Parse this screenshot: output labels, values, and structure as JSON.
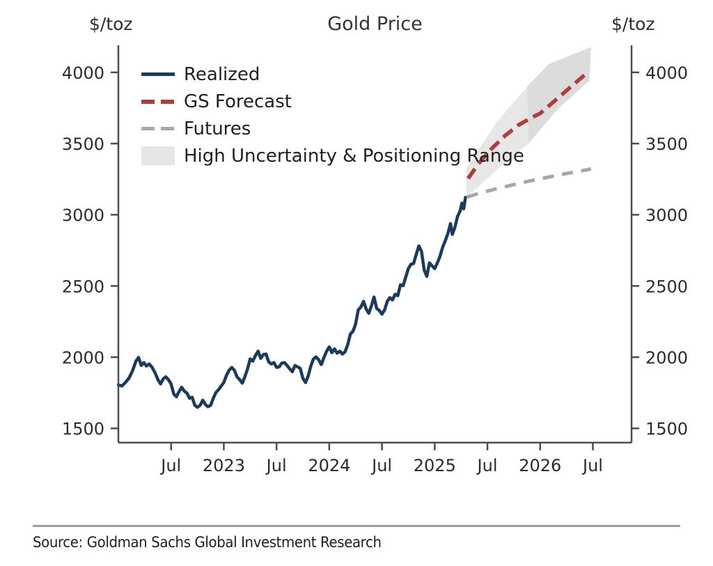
{
  "header": {
    "title": "Gold Price",
    "left_axis_unit": "$/toz",
    "right_axis_unit": "$/toz"
  },
  "legend": [
    {
      "label": "Realized",
      "style": "solid-line",
      "color": "#1b3a5c"
    },
    {
      "label": "GS Forecast",
      "style": "dashed-line",
      "color": "#b23a3a"
    },
    {
      "label": "Futures",
      "style": "dashed-line",
      "color": "#a7a7a7"
    },
    {
      "label": "High Uncertainty & Positioning Range",
      "style": "area",
      "color": "#e6e6e6"
    }
  ],
  "footer": {
    "source": "Source: Goldman Sachs Global Investment Research"
  },
  "chart_data": {
    "type": "line",
    "title": "Gold Price",
    "ylabel": "$/toz",
    "grid": false,
    "legend_position": "upper left",
    "x_unit": "months since Jan 2022",
    "xlim": [
      0,
      58.4
    ],
    "ylim": [
      1400,
      4190
    ],
    "y_ticks": [
      1500,
      2000,
      2500,
      3000,
      3500,
      4000
    ],
    "x_axis_ticks": [
      {
        "m": 6,
        "label": "Jul"
      },
      {
        "m": 12,
        "label": "2023"
      },
      {
        "m": 18,
        "label": "Jul"
      },
      {
        "m": 24,
        "label": "2024"
      },
      {
        "m": 30,
        "label": "Jul"
      },
      {
        "m": 36,
        "label": "2025"
      },
      {
        "m": 42,
        "label": "Jul"
      },
      {
        "m": 48,
        "label": "2026"
      },
      {
        "m": 54,
        "label": "Jul"
      }
    ],
    "series": [
      {
        "id": "realized",
        "name": "Realized",
        "color": "#1b3a5c",
        "width": 4.5,
        "dash": null,
        "points": [
          [
            0,
            1805
          ],
          [
            0.4,
            1798
          ],
          [
            0.8,
            1822
          ],
          [
            1.2,
            1852
          ],
          [
            1.6,
            1902
          ],
          [
            2.0,
            1972
          ],
          [
            2.3,
            1998
          ],
          [
            2.6,
            1942
          ],
          [
            2.9,
            1962
          ],
          [
            3.2,
            1938
          ],
          [
            3.5,
            1952
          ],
          [
            3.8,
            1932
          ],
          [
            4.2,
            1888
          ],
          [
            4.5,
            1842
          ],
          [
            4.8,
            1812
          ],
          [
            5.1,
            1848
          ],
          [
            5.4,
            1862
          ],
          [
            5.7,
            1842
          ],
          [
            6.0,
            1812
          ],
          [
            6.3,
            1742
          ],
          [
            6.6,
            1722
          ],
          [
            6.9,
            1758
          ],
          [
            7.2,
            1788
          ],
          [
            7.5,
            1762
          ],
          [
            7.8,
            1748
          ],
          [
            8.1,
            1712
          ],
          [
            8.4,
            1718
          ],
          [
            8.7,
            1662
          ],
          [
            9.0,
            1648
          ],
          [
            9.3,
            1662
          ],
          [
            9.6,
            1698
          ],
          [
            9.9,
            1668
          ],
          [
            10.2,
            1652
          ],
          [
            10.5,
            1662
          ],
          [
            10.8,
            1712
          ],
          [
            11.1,
            1752
          ],
          [
            11.4,
            1772
          ],
          [
            11.7,
            1798
          ],
          [
            12.0,
            1822
          ],
          [
            12.3,
            1872
          ],
          [
            12.6,
            1908
          ],
          [
            12.9,
            1928
          ],
          [
            13.2,
            1908
          ],
          [
            13.5,
            1862
          ],
          [
            13.8,
            1842
          ],
          [
            14.1,
            1818
          ],
          [
            14.4,
            1862
          ],
          [
            14.7,
            1918
          ],
          [
            15.0,
            1988
          ],
          [
            15.3,
            1972
          ],
          [
            15.6,
            2012
          ],
          [
            15.9,
            2042
          ],
          [
            16.2,
            1992
          ],
          [
            16.5,
            2018
          ],
          [
            16.8,
            2022
          ],
          [
            17.1,
            1968
          ],
          [
            17.4,
            1952
          ],
          [
            17.7,
            1962
          ],
          [
            18.0,
            1928
          ],
          [
            18.3,
            1932
          ],
          [
            18.6,
            1958
          ],
          [
            18.9,
            1962
          ],
          [
            19.2,
            1942
          ],
          [
            19.5,
            1918
          ],
          [
            19.8,
            1898
          ],
          [
            20.1,
            1942
          ],
          [
            20.4,
            1932
          ],
          [
            20.7,
            1922
          ],
          [
            21.0,
            1852
          ],
          [
            21.3,
            1822
          ],
          [
            21.6,
            1868
          ],
          [
            21.9,
            1938
          ],
          [
            22.2,
            1988
          ],
          [
            22.5,
            2002
          ],
          [
            22.8,
            1982
          ],
          [
            23.1,
            1948
          ],
          [
            23.4,
            1998
          ],
          [
            23.7,
            2042
          ],
          [
            24.0,
            2072
          ],
          [
            24.3,
            2032
          ],
          [
            24.6,
            2058
          ],
          [
            24.9,
            2028
          ],
          [
            25.2,
            2042
          ],
          [
            25.5,
            2022
          ],
          [
            25.8,
            2038
          ],
          [
            26.1,
            2088
          ],
          [
            26.4,
            2162
          ],
          [
            26.7,
            2182
          ],
          [
            27.0,
            2232
          ],
          [
            27.3,
            2332
          ],
          [
            27.6,
            2352
          ],
          [
            27.9,
            2392
          ],
          [
            28.2,
            2338
          ],
          [
            28.5,
            2308
          ],
          [
            28.8,
            2362
          ],
          [
            29.1,
            2422
          ],
          [
            29.4,
            2342
          ],
          [
            29.7,
            2328
          ],
          [
            30.0,
            2302
          ],
          [
            30.3,
            2332
          ],
          [
            30.6,
            2392
          ],
          [
            30.9,
            2418
          ],
          [
            31.2,
            2402
          ],
          [
            31.5,
            2442
          ],
          [
            31.8,
            2432
          ],
          [
            32.1,
            2508
          ],
          [
            32.4,
            2502
          ],
          [
            32.7,
            2562
          ],
          [
            33.0,
            2622
          ],
          [
            33.3,
            2652
          ],
          [
            33.6,
            2658
          ],
          [
            33.9,
            2722
          ],
          [
            34.2,
            2782
          ],
          [
            34.5,
            2742
          ],
          [
            34.8,
            2612
          ],
          [
            35.1,
            2568
          ],
          [
            35.4,
            2662
          ],
          [
            35.7,
            2642
          ],
          [
            36.0,
            2622
          ],
          [
            36.3,
            2662
          ],
          [
            36.6,
            2708
          ],
          [
            36.9,
            2772
          ],
          [
            37.2,
            2818
          ],
          [
            37.5,
            2868
          ],
          [
            37.8,
            2938
          ],
          [
            38.0,
            2862
          ],
          [
            38.3,
            2912
          ],
          [
            38.6,
            2988
          ],
          [
            38.9,
            3028
          ],
          [
            39.1,
            3082
          ],
          [
            39.3,
            3042
          ],
          [
            39.5,
            3122
          ]
        ]
      },
      {
        "id": "futures",
        "name": "Futures",
        "color": "#a7a7a7",
        "width": 5,
        "dash": "16 12",
        "points": [
          [
            39.7,
            3125
          ],
          [
            41,
            3150
          ],
          [
            43,
            3182
          ],
          [
            45,
            3212
          ],
          [
            47,
            3240
          ],
          [
            49,
            3265
          ],
          [
            51,
            3290
          ],
          [
            53,
            3312
          ],
          [
            53.8,
            3322
          ]
        ]
      },
      {
        "id": "gs-forecast",
        "name": "GS Forecast",
        "color": "#b23a3a",
        "width": 5.5,
        "dash": "17 9",
        "points": [
          [
            39.8,
            3255
          ],
          [
            41,
            3360
          ],
          [
            42.5,
            3465
          ],
          [
            44,
            3555
          ],
          [
            45.5,
            3628
          ],
          [
            47,
            3682
          ],
          [
            48,
            3712
          ],
          [
            49.5,
            3792
          ],
          [
            51,
            3872
          ],
          [
            52.5,
            3952
          ],
          [
            53.4,
            3998
          ]
        ]
      }
    ],
    "band": {
      "name": "High Uncertainty & Positioning Range",
      "color": "#e7e7e7",
      "upper": [
        [
          39.6,
          3330
        ],
        [
          43,
          3645
        ],
        [
          46.5,
          3900
        ],
        [
          49,
          4060
        ],
        [
          53.8,
          4178
        ]
      ],
      "lower": [
        [
          39.6,
          3120
        ],
        [
          43,
          3312
        ],
        [
          46.7,
          3502
        ],
        [
          50,
          3742
        ],
        [
          53.6,
          3942
        ]
      ],
      "fold": [
        [
          46.5,
          3900
        ],
        [
          49,
          4060
        ],
        [
          53.8,
          4178
        ],
        [
          53.6,
          3942
        ],
        [
          50,
          3742
        ],
        [
          46.7,
          3502
        ]
      ]
    }
  }
}
